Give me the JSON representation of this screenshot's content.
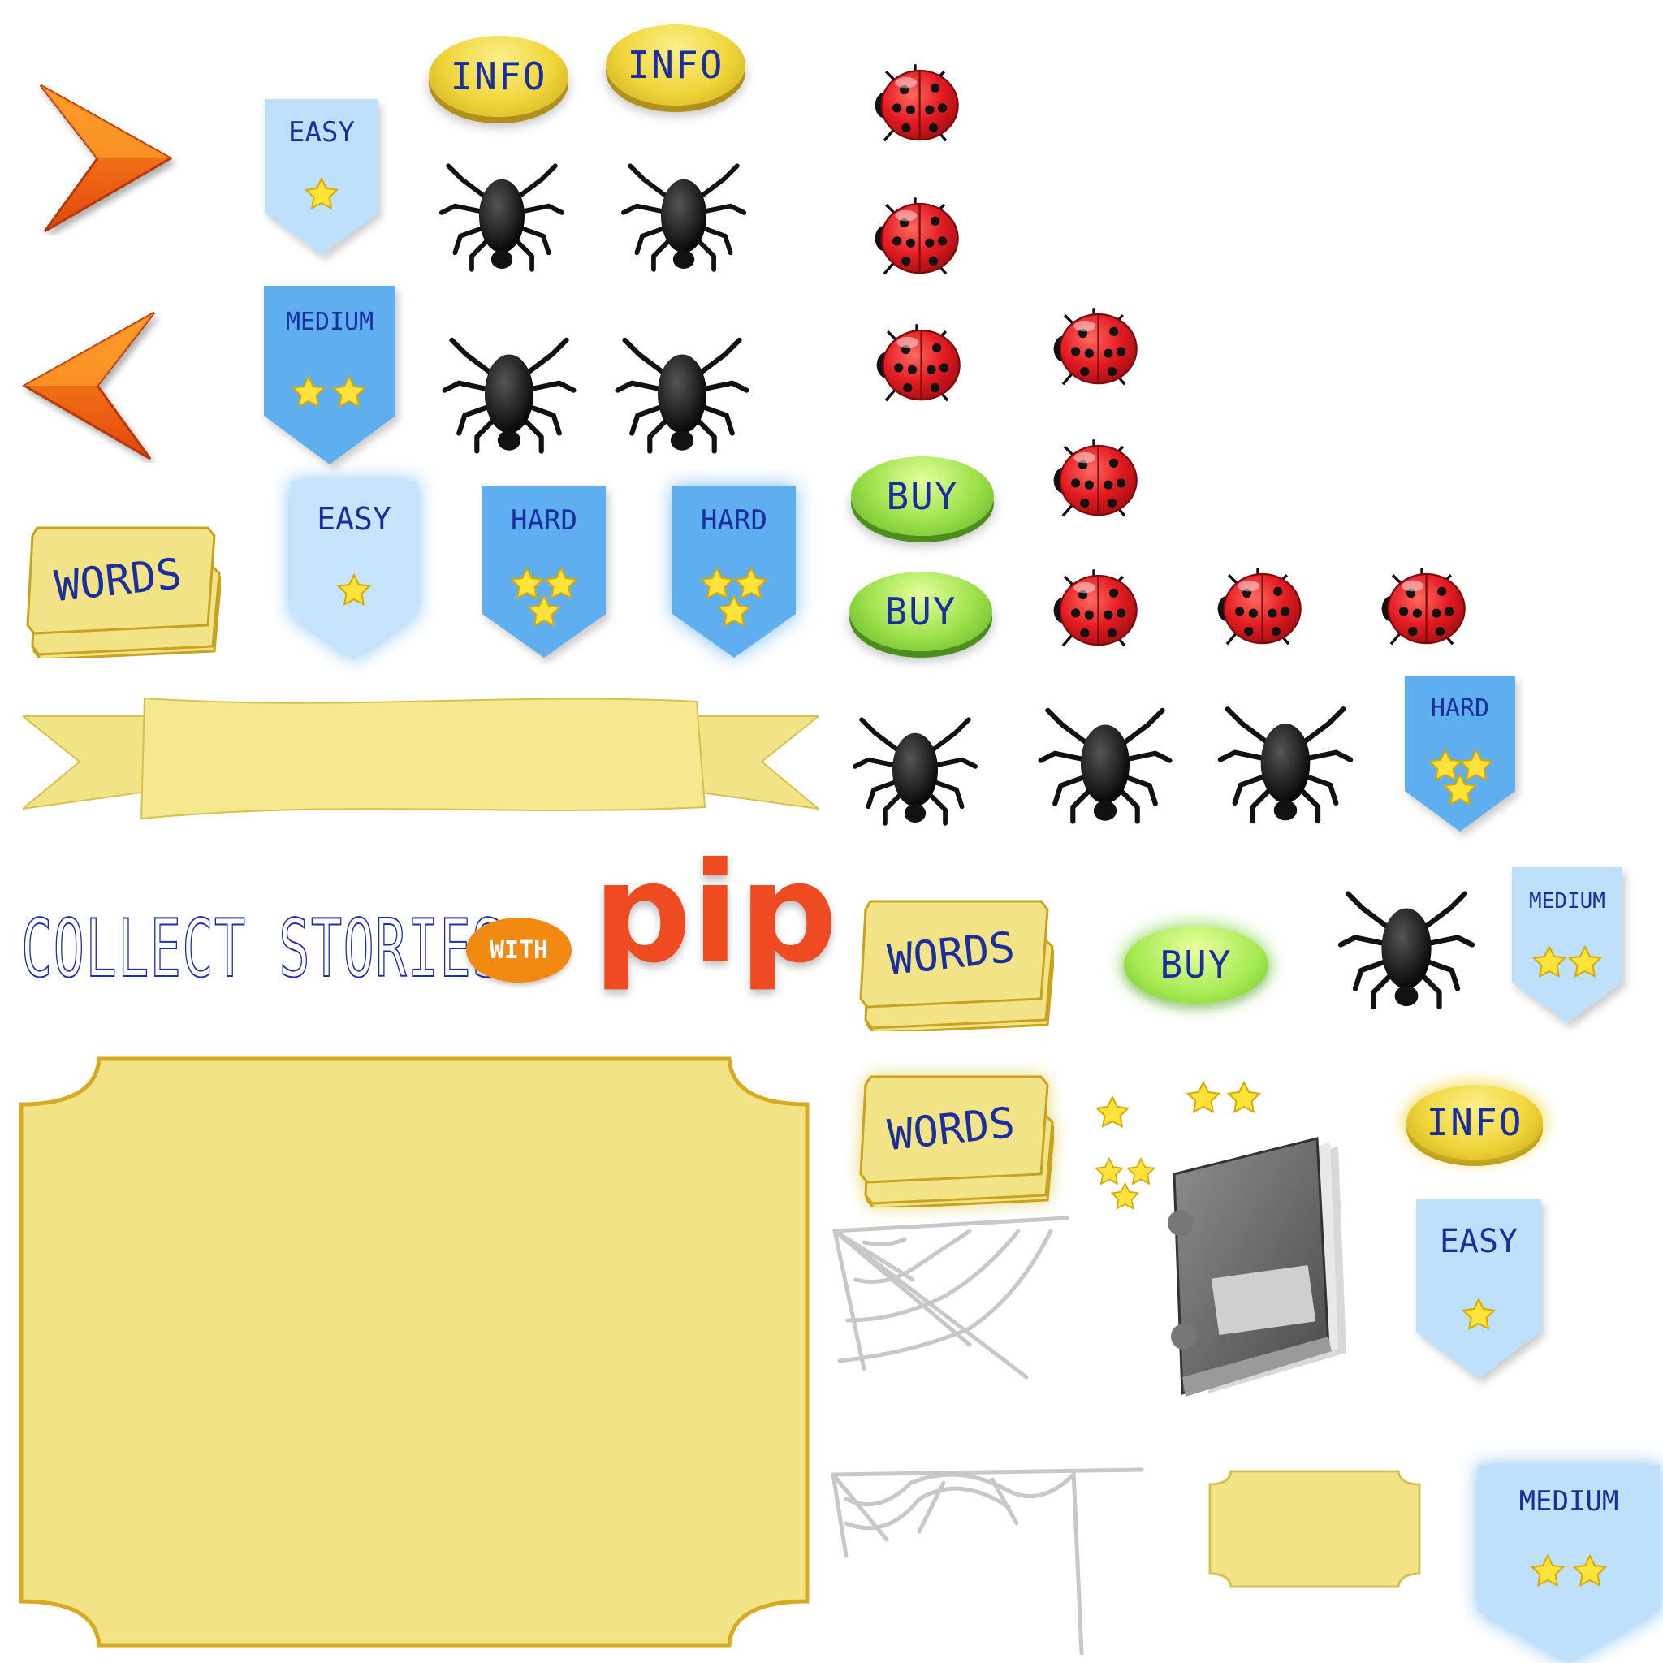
{
  "labels": {
    "info": "INFO",
    "buy": "BUY",
    "easy": "EASY",
    "medium": "MEDIUM",
    "hard": "HARD",
    "words": "WORDS"
  },
  "title": {
    "collect_stories": "COLLECT STORIES",
    "with": "WITH",
    "pip": "pip"
  },
  "colors": {
    "ribbon_light": "#bfe0fb",
    "ribbon_dark": "#5eaef0",
    "text_blue": "#1a2ea0",
    "gold_card": "#f2e486",
    "arrow_orange": "#f57a10",
    "ladybug_red": "#e51c23"
  },
  "icons": [
    "arrow-right-icon",
    "arrow-left-icon",
    "spider-icon",
    "ladybug-icon",
    "star-icon",
    "spiderweb-icon",
    "book-icon"
  ]
}
